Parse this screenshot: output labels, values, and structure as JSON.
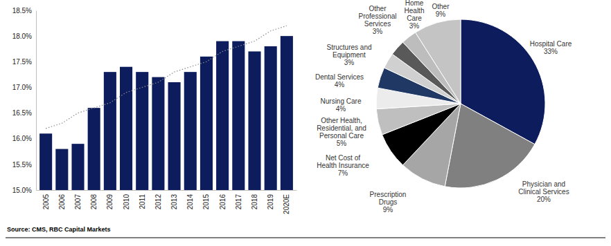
{
  "source": "Source: CMS, RBC Capital Markets",
  "chart_data": [
    {
      "type": "bar",
      "categories": [
        "2005",
        "2006",
        "2007",
        "2008",
        "2009",
        "2010",
        "2011",
        "2012",
        "2013",
        "2014",
        "2015",
        "2016",
        "2017",
        "2018",
        "2019",
        "2020E"
      ],
      "series": [
        {
          "type": "bar",
          "color": "#0c1c5c",
          "values": [
            16.1,
            15.8,
            15.9,
            16.6,
            17.3,
            17.4,
            17.3,
            17.2,
            17.1,
            17.3,
            17.6,
            17.9,
            17.9,
            17.7,
            17.8,
            18.0
          ]
        },
        {
          "type": "line",
          "color": "#8c8c8c",
          "line_style": "dotted",
          "values": [
            16.2,
            16.3,
            16.5,
            16.6,
            16.7,
            16.9,
            17.0,
            17.1,
            17.3,
            17.4,
            17.5,
            17.7,
            17.8,
            17.9,
            18.1,
            18.2
          ]
        }
      ],
      "ylim": [
        15.0,
        18.5
      ],
      "yticks": [
        {
          "value": 15.0,
          "label": "15.0%"
        },
        {
          "value": 15.5,
          "label": "15.5%"
        },
        {
          "value": 16.0,
          "label": "16.0%"
        },
        {
          "value": 16.5,
          "label": "16.5%"
        },
        {
          "value": 17.0,
          "label": "17.0%"
        },
        {
          "value": 17.5,
          "label": "17.5%"
        },
        {
          "value": 18.0,
          "label": "18.0%"
        },
        {
          "value": 18.5,
          "label": "18.5%"
        }
      ],
      "grid": false
    },
    {
      "type": "pie",
      "categories": [
        "Hospital Care",
        "Physician and Clinical Services",
        "Prescription Drugs",
        "Net Cost of Health Insurance",
        "Other Health, Residential, and Personal Care",
        "Nursing Care",
        "Dental Services",
        "Structures and Equipment",
        "Other Professional Services",
        "Home Health Care",
        "Other"
      ],
      "values": [
        33,
        20,
        9,
        7,
        5,
        4,
        4,
        3,
        3,
        3,
        9
      ],
      "value_labels": [
        "33%",
        "20%",
        "9%",
        "7%",
        "5%",
        "4%",
        "4%",
        "3%",
        "3%",
        "3%",
        "9%"
      ],
      "colors": [
        "#0c1c5c",
        "#808080",
        "#a6a6a6",
        "#000000",
        "#bfbfbf",
        "#ececec",
        "#1f3864",
        "#d0d0d0",
        "#595959",
        "#bdbdbd",
        "#c4c4c4"
      ],
      "data_labels": true
    }
  ]
}
